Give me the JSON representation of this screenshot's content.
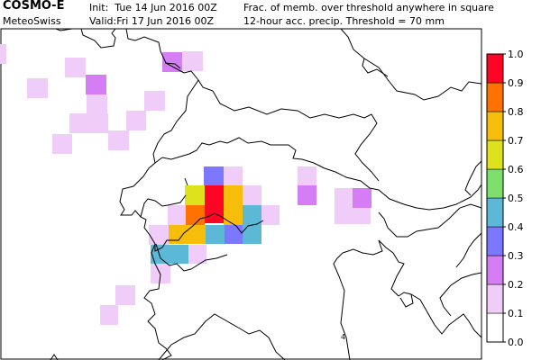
{
  "header": {
    "model": "COSMO-E",
    "org": "MeteoSwiss",
    "init": "Init:  Tue 14 Jun 2016 00Z",
    "valid": "Valid:Fri 17 Jun 2016 00Z",
    "desc1": "Frac. of memb. over threshold anywhere in square",
    "desc2": "12-hour acc. precip. Threshold = 70 mm"
  },
  "colorbar": {
    "labels": [
      "0.0",
      "0.1",
      "0.2",
      "0.3",
      "0.4",
      "0.5",
      "0.6",
      "0.7",
      "0.8",
      "0.9",
      "1.0"
    ],
    "colors": [
      "#ffffff",
      "#f0cdf8",
      "#d47df4",
      "#7b77ff",
      "#5bb8d6",
      "#7ee06a",
      "#dde21c",
      "#f6bd0b",
      "#ff7100",
      "#ff0525"
    ]
  },
  "cells": [
    {
      "v": 0.1,
      "col": 0,
      "row": 19
    },
    {
      "v": 0.1,
      "col": 0,
      "row": 20
    },
    {
      "v": 0.1,
      "col": 28,
      "row": 20
    },
    {
      "v": 0.1,
      "col": 28,
      "row": 21
    },
    {
      "v": 0.1,
      "col": 42,
      "row": 19
    },
    {
      "v": 0.1,
      "col": 42,
      "row": 20
    },
    {
      "v": 0.1,
      "col": 16,
      "row": 20
    },
    {
      "v": 0.1,
      "col": 16,
      "row": 21
    },
    {
      "v": 0.1,
      "col": 38,
      "row": 21
    },
    {
      "v": 0.1,
      "col": 38,
      "row": 22
    },
    {
      "v": 0.1,
      "col": 36,
      "row": 24
    },
    {
      "v": 0.1,
      "col": 36,
      "row": 25
    },
    {
      "v": 0.1,
      "col": 11,
      "row": 21
    },
    {
      "v": 0.1,
      "col": 11,
      "row": 22
    },
    {
      "v": 0.1,
      "col": 14,
      "row": 21
    },
    {
      "v": 0.1,
      "col": 14,
      "row": 22
    },
    {
      "v": 0.1,
      "col": 12,
      "row": 22
    },
    {
      "v": 0.1,
      "col": 12,
      "row": 23
    },
    {
      "v": 0.1,
      "col": 19,
      "row": 21
    },
    {
      "v": 0.1,
      "col": 19,
      "row": 22
    },
    {
      "v": 0.1,
      "col": 37,
      "row": 21
    },
    {
      "v": 0.1,
      "col": 37,
      "row": 22
    },
    {
      "v": 0.1,
      "col": 31,
      "row": 27
    },
    {
      "v": 0.1,
      "col": 31,
      "row": 28
    },
    {
      "v": 0.1,
      "col": 29,
      "row": 30
    },
    {
      "v": 0.1,
      "col": 29,
      "row": 31
    },
    {
      "v": 0.1,
      "col": 46,
      "row": 28
    },
    {
      "v": 0.1,
      "col": 46,
      "row": 29
    },
    {
      "v": 0.1,
      "col": 48,
      "row": 27
    },
    {
      "v": 0.1,
      "col": 48,
      "row": 28
    },
    {
      "v": 0.1,
      "col": 53,
      "row": 27
    },
    {
      "v": 0.1,
      "col": 53,
      "row": 28
    },
    {
      "v": 0.1,
      "col": 57,
      "row": 27
    },
    {
      "v": 0.1,
      "col": 57,
      "row": 28
    },
    {
      "v": 0.1,
      "col": 49,
      "row": 26
    },
    {
      "v": 0.1,
      "col": 49,
      "row": 27
    },
    {
      "v": 0.1,
      "col": 52,
      "row": 30
    },
    {
      "v": 0.1,
      "col": 52,
      "row": 31
    },
    {
      "v": 0.1,
      "col": 41,
      "row": 30
    },
    {
      "v": 0.1,
      "col": 41,
      "row": 31
    },
    {
      "v": 0.1,
      "col": 35,
      "row": 33
    },
    {
      "v": 0.1,
      "col": 35,
      "row": 34
    },
    {
      "v": 0.1,
      "col": 33,
      "row": 31
    },
    {
      "v": 0.1,
      "col": 33,
      "row": 32
    },
    {
      "v": 0.1,
      "col": 67,
      "row": 26
    },
    {
      "v": 0.1,
      "col": 67,
      "row": 27
    },
    {
      "v": 0.1,
      "col": 74,
      "row": 29
    },
    {
      "v": 0.1,
      "col": 74,
      "row": 30
    },
    {
      "v": 0.1,
      "col": 77,
      "row": 29
    },
    {
      "v": 0.1,
      "col": 77,
      "row": 30
    },
    {
      "v": 0.1,
      "col": 78,
      "row": 29
    },
    {
      "v": 0.1,
      "col": 78,
      "row": 30
    },
    {
      "v": 0.1,
      "col": 26,
      "row": 31
    },
    {
      "v": 0.1,
      "col": 26,
      "row": 32
    },
    {
      "v": 0.1,
      "col": 23,
      "row": 32
    },
    {
      "v": 0.1,
      "col": 23,
      "row": 33
    },
    {
      "v": 0.1,
      "col": 56,
      "row": 31
    },
    {
      "v": 0.1,
      "col": 56,
      "row": 32
    }
  ],
  "patches": [
    {
      "v": 0.1,
      "label": "far-west edge"
    },
    {
      "v": 0.1,
      "label": "north-west cluster"
    },
    {
      "v": 0.2,
      "label": "north-west purple"
    },
    {
      "v": 0.2,
      "label": "north purple"
    },
    {
      "v": 0.3,
      "label": "center blue"
    },
    {
      "v": 0.6,
      "label": "center yellow"
    },
    {
      "v": 1.0,
      "label": "center red"
    },
    {
      "v": 0.7,
      "label": "center orange"
    },
    {
      "v": 0.9,
      "label": "center orange-red"
    },
    {
      "v": 0.4,
      "label": "center teal"
    },
    {
      "v": 0.8,
      "label": "center amber"
    },
    {
      "v": 0.2,
      "label": "east purple"
    }
  ]
}
